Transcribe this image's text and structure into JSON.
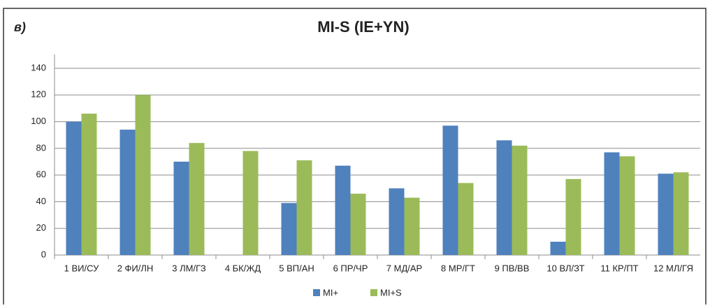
{
  "chart_data": {
    "type": "bar",
    "panel_label": "в)",
    "title": "MI-S (IE+YN)",
    "categories": [
      "1 ВИ/СУ",
      "2 ФИ/ЛН",
      "3 ЛМ/ГЗ",
      "4 БК/ЖД",
      "5 ВП/АН",
      "6 ПР/ЧР",
      "7 МД/АР",
      "8 МР/ГТ",
      "9 ПВ/ВВ",
      "10 ВЛ/ЗТ",
      "11 КР/ПТ",
      "12 МЛ/ГЯ"
    ],
    "series": [
      {
        "name": "MI+",
        "color": "#4f81bd",
        "values": [
          100,
          94,
          70,
          null,
          39,
          67,
          50,
          97,
          86,
          10,
          77,
          61
        ]
      },
      {
        "name": "MI+S",
        "color": "#9bbb59",
        "values": [
          106,
          120,
          84,
          78,
          71,
          46,
          43,
          54,
          82,
          57,
          74,
          62
        ]
      }
    ],
    "ylim": [
      0,
      140
    ],
    "yticks": [
      0,
      20,
      40,
      60,
      80,
      100,
      120,
      140
    ],
    "grid": true,
    "legend": "bottom"
  }
}
